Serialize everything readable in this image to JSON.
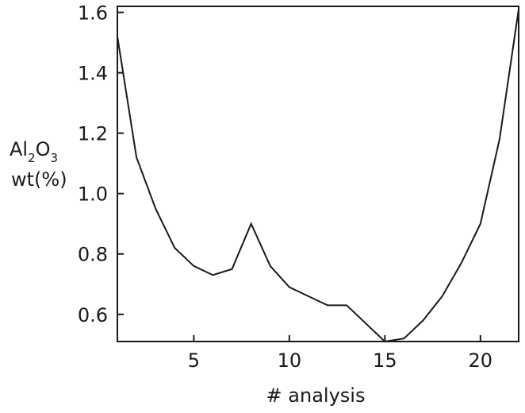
{
  "chart_data": {
    "type": "line",
    "title": "",
    "xlabel": "# analysis",
    "ylabel": {
      "line1_main": "Al",
      "line1_sub1": "2",
      "line1_mid": "O",
      "line1_sub2": "3",
      "line2": "wt(%)"
    },
    "xlim": [
      1,
      22
    ],
    "ylim": [
      0.51,
      1.62
    ],
    "xticks": [
      5,
      10,
      15,
      20
    ],
    "xtick_labels": [
      "5",
      "10",
      "15",
      "20"
    ],
    "yticks": [
      0.6,
      0.8,
      1.0,
      1.2,
      1.4,
      1.6
    ],
    "ytick_labels": [
      "0.6",
      "0.8",
      "1.0",
      "1.2",
      "1.4",
      "1.6"
    ],
    "grid": false,
    "series": [
      {
        "x": [
          1,
          2,
          3,
          4,
          5,
          6,
          7,
          8,
          9,
          10,
          11,
          12,
          13,
          14,
          15,
          16,
          17,
          18,
          19,
          20,
          21,
          22
        ],
        "values": [
          1.52,
          1.12,
          0.95,
          0.82,
          0.76,
          0.73,
          0.75,
          0.9,
          0.76,
          0.69,
          0.66,
          0.63,
          0.63,
          0.57,
          0.51,
          0.52,
          0.58,
          0.66,
          0.77,
          0.9,
          1.18,
          1.61
        ]
      }
    ]
  }
}
